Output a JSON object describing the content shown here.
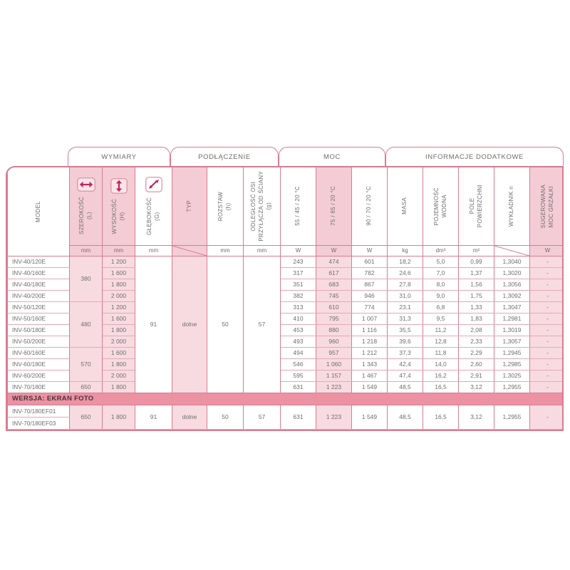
{
  "colors": {
    "accent_arrow": "#c2255c",
    "grid_border": "#d67d92",
    "row_line": "#e2a9b6",
    "highlight_column": "#f8dbe1",
    "highlight_header": "#f4ccd5",
    "banner_background": "#ec92a3",
    "banner_text": "#46353b",
    "text": "#6e6e70"
  },
  "groups": {
    "dimensions": "WYMIARY",
    "connection": "PODŁĄCZENIE",
    "power": "MOC",
    "additional": "INFORMACJE DODATKOWE"
  },
  "table": {
    "columns": [
      {
        "id": "model",
        "lines": [
          "MODEL"
        ],
        "unit": null,
        "highlight": false
      },
      {
        "id": "width",
        "lines": [
          "SZEROKOŚĆ",
          "(L)"
        ],
        "unit": "mm",
        "icon": "horizontal-arrow-icon",
        "highlight": true
      },
      {
        "id": "height",
        "lines": [
          "WYSOKOŚĆ",
          "(H)"
        ],
        "unit": "mm",
        "icon": "vertical-arrow-icon",
        "highlight": true
      },
      {
        "id": "depth",
        "lines": [
          "GŁĘBOKOŚĆ",
          "(G)"
        ],
        "unit": "mm",
        "icon": "diagonal-arrow-icon",
        "highlight": false
      },
      {
        "id": "type",
        "lines": [
          "TYP"
        ],
        "unit": null,
        "diagonal_unit": true,
        "highlight": true
      },
      {
        "id": "spacing",
        "lines": [
          "ROZSTAW",
          "(h)"
        ],
        "unit": "mm",
        "highlight": false
      },
      {
        "id": "axis-distance",
        "lines": [
          "ODLEGŁOŚĆ OSI",
          "PRZYŁĄCZA OD ŚCIANY",
          "(g)"
        ],
        "unit": "mm",
        "highlight": false
      },
      {
        "id": "power-55",
        "lines": [
          "55 / 45 / 20 °C"
        ],
        "unit": "W",
        "highlight": false
      },
      {
        "id": "power-75",
        "lines": [
          "75 / 65 / 20 °C"
        ],
        "unit": "W",
        "highlight": true
      },
      {
        "id": "power-90",
        "lines": [
          "90 / 70 / 20 °C"
        ],
        "unit": "W",
        "highlight": false
      },
      {
        "id": "mass",
        "lines": [
          "MASA"
        ],
        "unit": "kg",
        "highlight": false
      },
      {
        "id": "water-capacity",
        "lines": [
          "POJEMNOŚĆ",
          "WODNA"
        ],
        "unit": "dm³",
        "highlight": false
      },
      {
        "id": "surface-area",
        "lines": [
          "POLE",
          "POWIERZCHNI"
        ],
        "unit": "m²",
        "highlight": false
      },
      {
        "id": "exponent",
        "lines": [
          "WYKŁADNIK n"
        ],
        "unit": null,
        "diagonal_unit": true,
        "highlight": false
      },
      {
        "id": "heater-power",
        "lines": [
          "SUGEROWANA",
          "MOC GRZAŁKI"
        ],
        "unit": "W",
        "highlight": true
      }
    ],
    "width_groups": [
      {
        "value": "380",
        "rows": 4
      },
      {
        "value": "480",
        "rows": 4
      },
      {
        "value": "570",
        "rows": 3
      },
      {
        "value": "650",
        "rows": 1
      }
    ],
    "shared": {
      "depth": "91",
      "type": "dolne",
      "spacing": "50",
      "distance": "57"
    },
    "rows": [
      {
        "model": "INV-40/120E",
        "height": "1 200",
        "values": [
          "243",
          "474",
          "601",
          "18,2",
          "5,0",
          "0,99",
          "1,3040",
          "-"
        ]
      },
      {
        "model": "INV-40/160E",
        "height": "1 600",
        "values": [
          "317",
          "617",
          "782",
          "24,6",
          "7,0",
          "1,37",
          "1,3020",
          "-"
        ]
      },
      {
        "model": "INV-40/180E",
        "height": "1 800",
        "values": [
          "351",
          "683",
          "867",
          "27,8",
          "8,0",
          "1,56",
          "1,3056",
          "-"
        ]
      },
      {
        "model": "INV-40/200E",
        "height": "2 000",
        "values": [
          "382",
          "745",
          "946",
          "31,0",
          "9,0",
          "1,75",
          "1,3092",
          "-"
        ]
      },
      {
        "model": "INV-50/120E",
        "height": "1 200",
        "values": [
          "313",
          "610",
          "774",
          "23,1",
          "6,8",
          "1,33",
          "1,3047",
          "-"
        ]
      },
      {
        "model": "INV-50/160E",
        "height": "1 600",
        "values": [
          "410",
          "795",
          "1 007",
          "31,3",
          "9,5",
          "1,83",
          "1,2981",
          "-"
        ]
      },
      {
        "model": "INV-50/180E",
        "height": "1 800",
        "values": [
          "453",
          "880",
          "1 116",
          "35,5",
          "11,2",
          "2,08",
          "1,3019",
          "-"
        ]
      },
      {
        "model": "INV-50/200E",
        "height": "2 000",
        "values": [
          "493",
          "960",
          "1 218",
          "39,6",
          "12,8",
          "2,33",
          "1,3057",
          "-"
        ]
      },
      {
        "model": "INV-60/160E",
        "height": "1 600",
        "values": [
          "494",
          "957",
          "1 212",
          "37,3",
          "11,8",
          "2,29",
          "1,2945",
          "-"
        ]
      },
      {
        "model": "INV-60/180E",
        "height": "1 800",
        "values": [
          "546",
          "1 060",
          "1 343",
          "42,4",
          "14,0",
          "2,60",
          "1,2985",
          "-"
        ]
      },
      {
        "model": "INV-60/200E",
        "height": "2 000",
        "values": [
          "595",
          "1 157",
          "1 467",
          "47,4",
          "16,2",
          "2,91",
          "1,3025",
          "-"
        ]
      },
      {
        "model": "INV-70/180E",
        "height": "1 800",
        "values": [
          "631",
          "1 223",
          "1 549",
          "48,5",
          "16,5",
          "3,12",
          "1,2955",
          "-"
        ]
      }
    ],
    "banner": "WERSJA: EKRAN FOTO",
    "ef_section": {
      "models": [
        "INV-70/180EF01",
        "INV-70/180EF03"
      ],
      "width": "650",
      "height": "1 800",
      "depth": "91",
      "type": "dolne",
      "spacing": "50",
      "distance": "57",
      "values": [
        "631",
        "1 223",
        "1 549",
        "48,5",
        "16,5",
        "3,12",
        "1,2955",
        "-"
      ]
    }
  }
}
